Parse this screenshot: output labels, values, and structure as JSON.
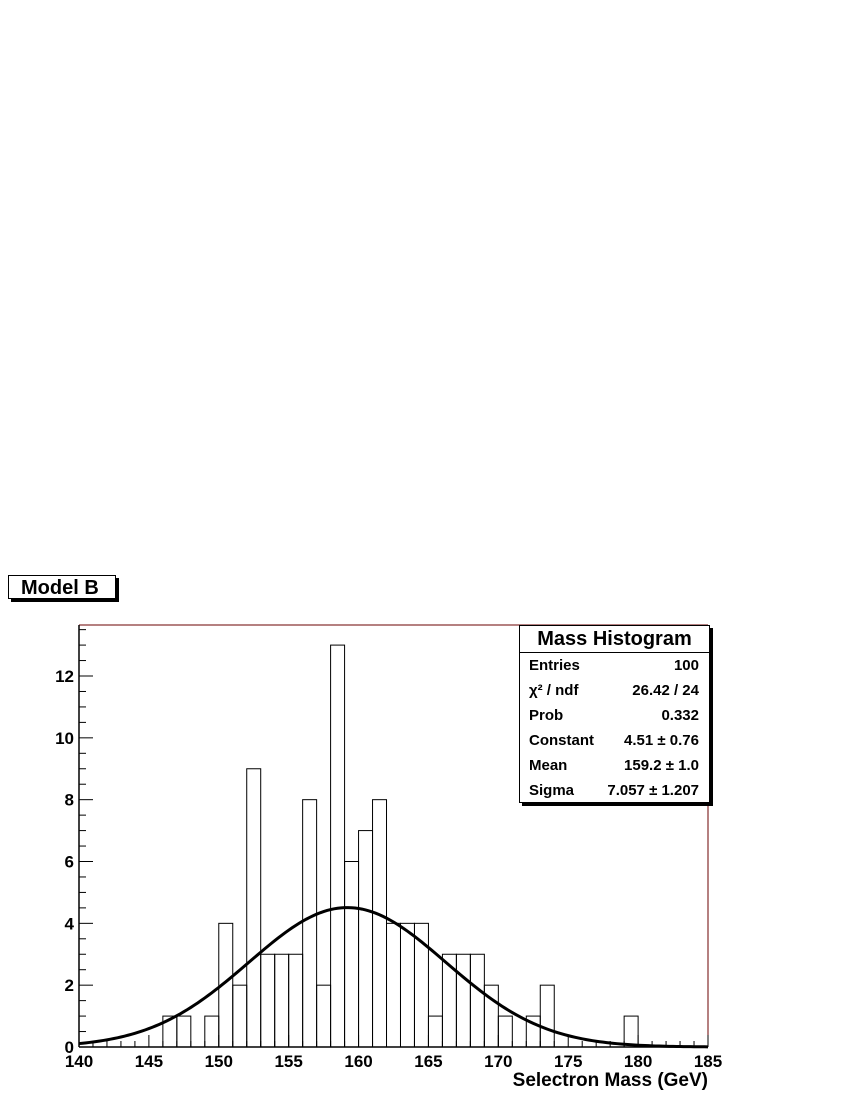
{
  "title_box": "Model B",
  "stats": {
    "title": "Mass Histogram",
    "rows": [
      {
        "label": "Entries",
        "value": "100"
      },
      {
        "label": "χ² / ndf",
        "value": "26.42 / 24"
      },
      {
        "label": "Prob",
        "value": "0.332"
      },
      {
        "label": "Constant",
        "value": "4.51 ± 0.76"
      },
      {
        "label": "Mean",
        "value": "159.2 ± 1.0"
      },
      {
        "label": "Sigma",
        "value": "7.057 ± 1.207"
      }
    ]
  },
  "chart_data": {
    "type": "bar",
    "title": "Mass Histogram",
    "xlabel": "Selectron Mass (GeV)",
    "ylabel": "",
    "xlim": [
      140,
      185
    ],
    "ylim": [
      0,
      13.65
    ],
    "x_ticks": [
      140,
      145,
      150,
      155,
      160,
      165,
      170,
      175,
      180,
      185
    ],
    "y_ticks": [
      0,
      2,
      4,
      6,
      8,
      10,
      12
    ],
    "bin_width": 1,
    "bins": [
      {
        "low": 146,
        "count": 1
      },
      {
        "low": 147,
        "count": 1
      },
      {
        "low": 149,
        "count": 1
      },
      {
        "low": 150,
        "count": 4
      },
      {
        "low": 151,
        "count": 2
      },
      {
        "low": 152,
        "count": 9
      },
      {
        "low": 153,
        "count": 3
      },
      {
        "low": 154,
        "count": 3
      },
      {
        "low": 155,
        "count": 3
      },
      {
        "low": 156,
        "count": 8
      },
      {
        "low": 157,
        "count": 2
      },
      {
        "low": 158,
        "count": 13
      },
      {
        "low": 159,
        "count": 6
      },
      {
        "low": 160,
        "count": 7
      },
      {
        "low": 161,
        "count": 8
      },
      {
        "low": 162,
        "count": 4
      },
      {
        "low": 163,
        "count": 4
      },
      {
        "low": 164,
        "count": 4
      },
      {
        "low": 165,
        "count": 1
      },
      {
        "low": 166,
        "count": 3
      },
      {
        "low": 167,
        "count": 3
      },
      {
        "low": 168,
        "count": 3
      },
      {
        "low": 169,
        "count": 2
      },
      {
        "low": 170,
        "count": 1
      },
      {
        "low": 172,
        "count": 1
      },
      {
        "low": 173,
        "count": 2
      },
      {
        "low": 179,
        "count": 1
      }
    ],
    "fit": {
      "function": "gaus",
      "constant": 4.51,
      "mean": 159.2,
      "sigma": 7.057
    }
  }
}
